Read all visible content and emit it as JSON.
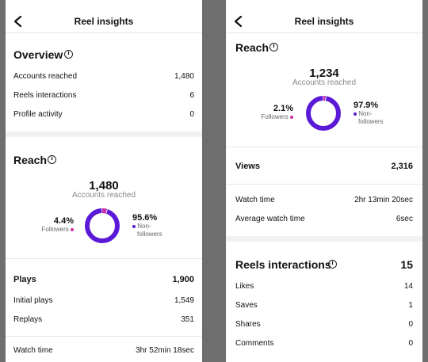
{
  "colors": {
    "primary": "#5a19d6",
    "accent": "#cc2ea8",
    "ring_gap": "#ffffff"
  },
  "screen1": {
    "header": {
      "title": "Reel insights",
      "back_icon": "chevron-left-icon"
    },
    "overview": {
      "title": "Overview",
      "rows": [
        {
          "label": "Accounts reached",
          "value": "1,480"
        },
        {
          "label": "Reels interactions",
          "value": "6"
        },
        {
          "label": "Profile activity",
          "value": "0"
        }
      ]
    },
    "reach": {
      "title": "Reach",
      "total": "1,480",
      "caption": "Accounts reached",
      "followers_pct": "4.4%",
      "followers_label": "Followers",
      "nonfollowers_pct": "95.6%",
      "nonfollowers_label_line1": "Non-",
      "nonfollowers_label_line2": "followers",
      "followers_fraction": 0.044
    },
    "plays": {
      "title": "Plays",
      "value": "1,900",
      "rows": [
        {
          "label": "Initial plays",
          "value": "1,549"
        },
        {
          "label": "Replays",
          "value": "351"
        }
      ]
    },
    "watch": {
      "label": "Watch time",
      "value": "3hr 52min 18sec"
    }
  },
  "screen2": {
    "header": {
      "title": "Reel insights",
      "back_icon": "chevron-left-icon"
    },
    "reach": {
      "title": "Reach",
      "total": "1,234",
      "caption": "Accounts reached",
      "followers_pct": "2.1%",
      "followers_label": "Followers",
      "nonfollowers_pct": "97.9%",
      "nonfollowers_label_line1": "Non-",
      "nonfollowers_label_line2": "followers",
      "followers_fraction": 0.021
    },
    "views": {
      "title": "Views",
      "value": "2,316"
    },
    "watch_rows": [
      {
        "label": "Watch time",
        "value": "2hr 13min 20sec"
      },
      {
        "label": "Average watch time",
        "value": "6sec"
      }
    ],
    "interactions": {
      "title": "Reels interactions",
      "value": "15",
      "rows": [
        {
          "label": "Likes",
          "value": "14"
        },
        {
          "label": "Saves",
          "value": "1"
        },
        {
          "label": "Shares",
          "value": "0"
        },
        {
          "label": "Comments",
          "value": "0"
        }
      ]
    }
  }
}
